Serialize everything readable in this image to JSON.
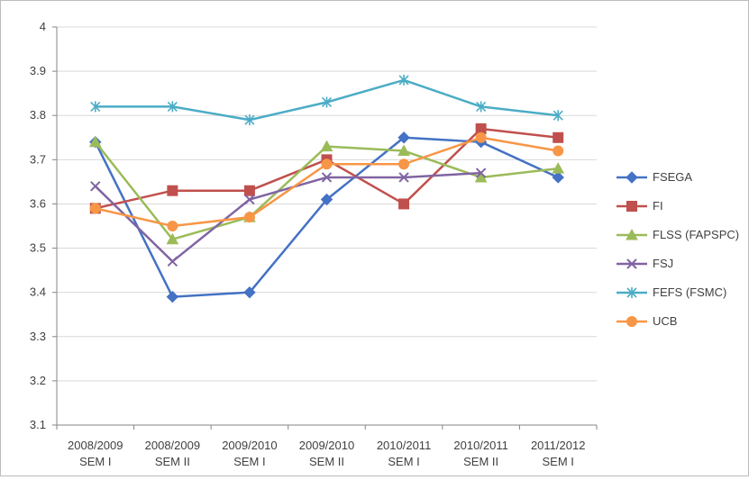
{
  "chart_data": {
    "type": "line",
    "title": "",
    "xlabel": "",
    "ylabel": "",
    "categories": [
      [
        "2008/2009",
        "SEM I"
      ],
      [
        "2008/2009",
        "SEM II"
      ],
      [
        "2009/2010",
        "SEM I"
      ],
      [
        "2009/2010",
        "SEM II"
      ],
      [
        "2010/2011",
        "SEM I"
      ],
      [
        "2010/2011",
        "SEM II"
      ],
      [
        "2011/2012",
        "SEM I"
      ]
    ],
    "ylim": [
      3.1,
      4.0
    ],
    "yticks": [
      "3.1",
      "3.2",
      "3.3",
      "3.4",
      "3.5",
      "3.6",
      "3.7",
      "3.8",
      "3.9",
      "4"
    ],
    "grid": "horizontal",
    "legend_position": "right",
    "series": [
      {
        "name": "FSEGA",
        "color": "#4472c4",
        "marker": "diamond",
        "values": [
          3.74,
          3.39,
          3.4,
          3.61,
          3.75,
          3.74,
          3.66
        ]
      },
      {
        "name": "FI",
        "color": "#c0504d",
        "marker": "square",
        "values": [
          3.59,
          3.63,
          3.63,
          3.7,
          3.6,
          3.77,
          3.75
        ]
      },
      {
        "name": "FLSS (FAPSPC)",
        "color": "#9bbb59",
        "marker": "triangle",
        "values": [
          3.74,
          3.52,
          3.57,
          3.73,
          3.72,
          3.66,
          3.68
        ]
      },
      {
        "name": "FSJ",
        "color": "#8064a2",
        "marker": "x",
        "values": [
          3.64,
          3.47,
          3.61,
          3.66,
          3.66,
          3.67,
          null
        ]
      },
      {
        "name": "FEFS (FSMC)",
        "color": "#4bacc6",
        "marker": "star",
        "values": [
          3.82,
          3.82,
          3.79,
          3.83,
          3.88,
          3.82,
          3.8
        ]
      },
      {
        "name": "UCB",
        "color": "#f79646",
        "marker": "circle",
        "values": [
          3.59,
          3.55,
          3.57,
          3.69,
          3.69,
          3.75,
          3.72
        ]
      }
    ]
  }
}
